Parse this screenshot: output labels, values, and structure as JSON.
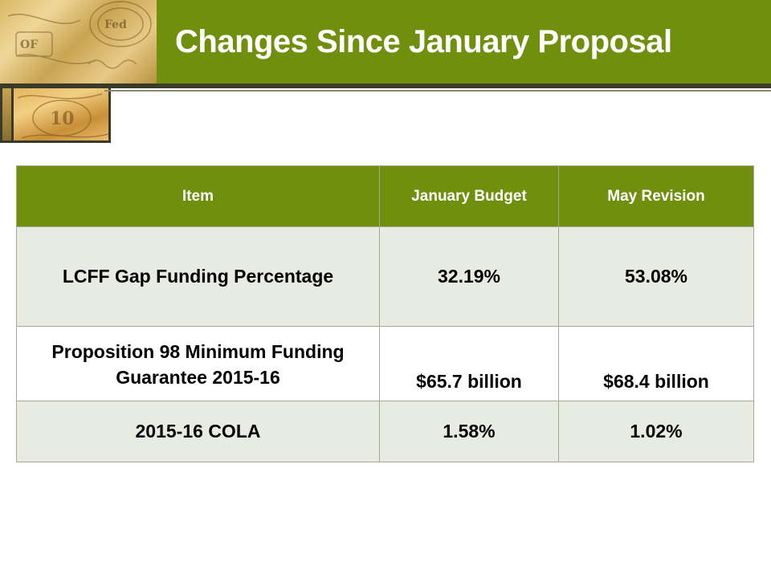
{
  "slide": {
    "title": "Changes Since January Proposal"
  },
  "table": {
    "headers": [
      "Item",
      "January Budget",
      "May Revision"
    ],
    "rows": [
      [
        "LCFF Gap Funding Percentage",
        "32.19%",
        "53.08%"
      ],
      [
        "Proposition 98 Minimum Funding Guarantee 2015-16",
        "$65.7 billion",
        "$68.4 billion"
      ],
      [
        "2015-16 COLA",
        "1.58%",
        "1.02%"
      ]
    ]
  },
  "colors": {
    "accent_green": "#6f8f0d",
    "row_shade": "#e8ebe2",
    "title_text": "#ffffff"
  }
}
